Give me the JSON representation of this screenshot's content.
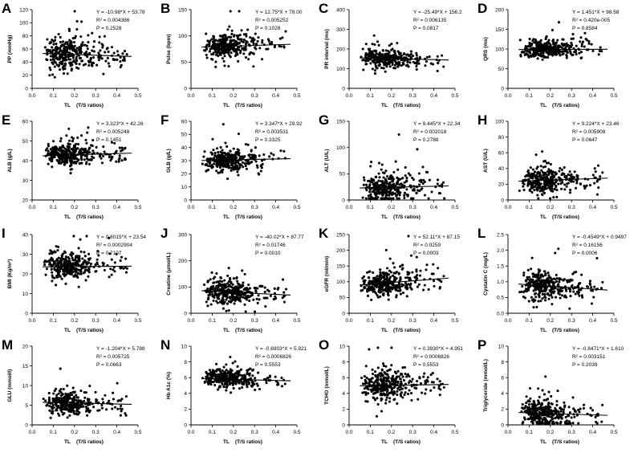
{
  "figure": {
    "n_points_per_panel": 330,
    "x_axis": {
      "label": "TL",
      "sublabel": "(T/S ratios)",
      "ticks": [
        "0.0",
        "0.1",
        "0.2",
        "0.3",
        "0.4",
        "0.5"
      ],
      "range": [
        0,
        0.5
      ]
    }
  },
  "chart_data": [
    {
      "type": "scatter",
      "panel": "A",
      "title": "A",
      "ylabel": "PP (mmHg)",
      "ylim": [
        0,
        120
      ],
      "yticks": [
        "0",
        "20",
        "40",
        "60",
        "80",
        "100",
        "120"
      ],
      "fit": {
        "slope": -10.98,
        "intercept": 53.78
      },
      "y_mean": 52,
      "y_sd": 12,
      "stats": [
        "Y = -10.98*X + 53.78",
        "R² = 0.004386",
        "P = 0.2528"
      ]
    },
    {
      "type": "scatter",
      "panel": "B",
      "title": "B",
      "ylabel": "Pulse (bpm)",
      "ylim": [
        0,
        150
      ],
      "yticks": [
        "0",
        "50",
        "100",
        "150"
      ],
      "fit": {
        "slope": 12.75,
        "intercept": 78.0
      },
      "y_mean": 80,
      "y_sd": 12,
      "stats": [
        "Y = 12.75*X + 78.00",
        "R² = 0.005252",
        "P = 0.1028"
      ]
    },
    {
      "type": "scatter",
      "panel": "C",
      "title": "C",
      "ylabel": "PR interval (ms)",
      "ylim": [
        0,
        400
      ],
      "yticks": [
        "0",
        "100",
        "200",
        "300",
        "400"
      ],
      "fit": {
        "slope": -25.49,
        "intercept": 156.2
      },
      "y_mean": 152,
      "y_sd": 22,
      "stats": [
        "Y = -25.49*X + 156.2",
        "R² = 0.006135",
        "P = 0.0817"
      ]
    },
    {
      "type": "scatter",
      "panel": "D",
      "title": "D",
      "ylabel": "QRS (ms)",
      "ylim": [
        0,
        200
      ],
      "yticks": [
        "0",
        "50",
        "100",
        "150",
        "200"
      ],
      "fit": {
        "slope": 1.451,
        "intercept": 98.58
      },
      "y_mean": 99,
      "y_sd": 12,
      "stats": [
        "Y = 1.451*X + 98.58",
        "R² = 0.420e-005",
        "P = 0.8584"
      ]
    },
    {
      "type": "scatter",
      "panel": "E",
      "title": "E",
      "ylabel": "ALB (g/L)",
      "ylim": [
        20,
        60
      ],
      "yticks": [
        "20",
        "30",
        "40",
        "50",
        "60"
      ],
      "fit": {
        "slope": 3.323,
        "intercept": 42.26
      },
      "y_mean": 43,
      "y_sd": 3,
      "stats": [
        "Y = 3.323*X + 42.26",
        "R² = 0.005248",
        "P = 0.1451"
      ]
    },
    {
      "type": "scatter",
      "panel": "F",
      "title": "F",
      "ylabel": "GLB (g/L)",
      "ylim": [
        0,
        60
      ],
      "yticks": [
        "0",
        "10",
        "20",
        "30",
        "40",
        "50",
        "60"
      ],
      "fit": {
        "slope": 3.347,
        "intercept": 29.92
      },
      "y_mean": 30,
      "y_sd": 4,
      "stats": [
        "Y = 3.347*X + 29.92",
        "R² = 0.003531",
        "P = 0.3325"
      ]
    },
    {
      "type": "scatter",
      "panel": "G",
      "title": "G",
      "ylabel": "ALT (U/L)",
      "ylim": [
        0,
        150
      ],
      "yticks": [
        "0",
        "50",
        "100",
        "150"
      ],
      "fit": {
        "slope": 9.445,
        "intercept": 22.34
      },
      "y_mean": 22,
      "y_sd": 14,
      "stats": [
        "Y = 9.445*X + 22.34",
        "R² = 0.002018",
        "P = 0.2788"
      ]
    },
    {
      "type": "scatter",
      "panel": "H",
      "title": "H",
      "ylabel": "AST (U/L)",
      "ylim": [
        0,
        100
      ],
      "yticks": [
        "0",
        "20",
        "40",
        "60",
        "80",
        "100"
      ],
      "fit": {
        "slope": 9.224,
        "intercept": 23.46
      },
      "y_mean": 25,
      "y_sd": 8,
      "stats": [
        "Y = 9.224*X + 23.46",
        "R² = 0.005908",
        "P = 0.0647"
      ]
    },
    {
      "type": "scatter",
      "panel": "I",
      "title": "I",
      "ylabel": "BMI (Kg/m²)",
      "ylim": [
        0,
        40
      ],
      "yticks": [
        "0",
        "10",
        "20",
        "30",
        "40"
      ],
      "fit": {
        "slope": 0.8015,
        "intercept": 23.54
      },
      "y_mean": 24,
      "y_sd": 3.5,
      "stats": [
        "Y = 0.8015*X + 23.54",
        "R² = 0.0002904",
        "P = 0.7107"
      ]
    },
    {
      "type": "scatter",
      "panel": "J",
      "title": "J",
      "ylabel": "Creatine (μmol/L)",
      "ylim": [
        0,
        300
      ],
      "yticks": [
        "0",
        "100",
        "200",
        "300"
      ],
      "fit": {
        "slope": -40.02,
        "intercept": 87.77
      },
      "y_mean": 80,
      "y_sd": 25,
      "stats": [
        "Y = -40.02*X + 87.77",
        "R² = 0.01746",
        "P = 0.0010"
      ]
    },
    {
      "type": "scatter",
      "panel": "K",
      "title": "K",
      "ylabel": "eGFR (ml/min)",
      "ylim": [
        0,
        250
      ],
      "yticks": [
        "0",
        "50",
        "100",
        "150",
        "200",
        "250"
      ],
      "fit": {
        "slope": 52.11,
        "intercept": 87.15
      },
      "y_mean": 95,
      "y_sd": 20,
      "stats": [
        "Y = 52.11*X + 87.15",
        "R² = 0.0259",
        "P = 0.0003"
      ]
    },
    {
      "type": "scatter",
      "panel": "L",
      "title": "L",
      "ylabel": "Cystatin C (mg/L)",
      "ylim": [
        0.0,
        2.5
      ],
      "yticks": [
        "0.0",
        "0.5",
        "1.0",
        "1.5",
        "2.0",
        "2.5"
      ],
      "fit": {
        "slope": -0.4549,
        "intercept": 0.9497
      },
      "y_mean": 0.88,
      "y_sd": 0.22,
      "stats": [
        "Y = -0.4549*X + 0.9497",
        "R² = 0.16156",
        "P = 0.0006"
      ]
    },
    {
      "type": "scatter",
      "panel": "M",
      "title": "M",
      "ylabel": "GLU (mmol/l)",
      "ylim": [
        0,
        20
      ],
      "yticks": [
        "0",
        "5",
        "10",
        "15",
        "20"
      ],
      "fit": {
        "slope": -1.204,
        "intercept": 5.788
      },
      "y_mean": 5.5,
      "y_sd": 1.3,
      "stats": [
        "Y = -1.204*X + 5.788",
        "R² = 0.005725",
        "P = 0.0663"
      ]
    },
    {
      "type": "scatter",
      "panel": "N",
      "title": "N",
      "ylabel": "Hb A1c (%)",
      "ylim": [
        0,
        10
      ],
      "yticks": [
        "0",
        "2",
        "4",
        "6",
        "8",
        "10"
      ],
      "fit": {
        "slope": -0.6903,
        "intercept": 5.921
      },
      "y_mean": 5.85,
      "y_sd": 0.55,
      "stats": [
        "Y = -0.6903*X + 5.921",
        "R² = 0.0006826",
        "P = 0.5553"
      ]
    },
    {
      "type": "scatter",
      "panel": "O",
      "title": "O",
      "ylabel": "TCHO (mmol/L)",
      "ylim": [
        0,
        10
      ],
      "yticks": [
        "0",
        "2",
        "4",
        "6",
        "8",
        "10"
      ],
      "fit": {
        "slope": 0.393,
        "intercept": 4.951
      },
      "y_mean": 5.0,
      "y_sd": 1.0,
      "stats": [
        "Y = 0.3930*X + 4.951",
        "R² = 0.0006826",
        "P = 0.5553"
      ]
    },
    {
      "type": "scatter",
      "panel": "P",
      "title": "P",
      "ylabel": "Triglyceride (mmol/L)",
      "ylim": [
        0,
        10
      ],
      "yticks": [
        "0",
        "2",
        "4",
        "6",
        "8",
        "10"
      ],
      "fit": {
        "slope": -0.8471,
        "intercept": 1.61
      },
      "y_mean": 1.45,
      "y_sd": 0.9,
      "stats": [
        "Y = -0.8471*X + 1.610",
        "R² = 0.003151",
        "P = 0.2039"
      ]
    }
  ]
}
